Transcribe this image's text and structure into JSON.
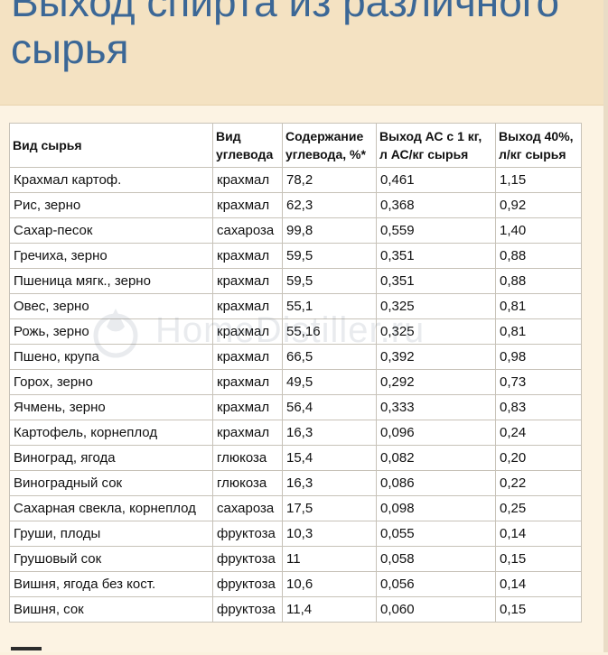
{
  "banner": {
    "title_line1": "Выход спирта из различного",
    "title_line2": "сырья"
  },
  "watermark": {
    "text": "HomeDistiller.ru"
  },
  "table": {
    "headers": [
      [
        "Вид сырья"
      ],
      [
        "Вид",
        "углевода"
      ],
      [
        "Содержание",
        "углевода, %*"
      ],
      [
        "Выход АС с 1 кг,",
        "л АС/кг сырья"
      ],
      [
        "Выход 40%,",
        "л/кг сырья"
      ]
    ],
    "rows": [
      [
        "Крахмал картоф.",
        "крахмал",
        "78,2",
        "0,461",
        "1,15"
      ],
      [
        "Рис, зерно",
        "крахмал",
        "62,3",
        "0,368",
        "0,92"
      ],
      [
        "Сахар-песок",
        "сахароза",
        "99,8",
        "0,559",
        "1,40"
      ],
      [
        "Гречиха, зерно",
        "крахмал",
        "59,5",
        "0,351",
        "0,88"
      ],
      [
        "Пшеница мягк., зерно",
        "крахмал",
        "59,5",
        "0,351",
        "0,88"
      ],
      [
        "Овес, зерно",
        "крахмал",
        "55,1",
        "0,325",
        "0,81"
      ],
      [
        "Рожь, зерно",
        "крахмал",
        "55,16",
        "0,325",
        "0,81"
      ],
      [
        "Пшено, крупа",
        "крахмал",
        "66,5",
        "0,392",
        "0,98"
      ],
      [
        "Горох, зерно",
        "крахмал",
        "49,5",
        "0,292",
        "0,73"
      ],
      [
        "Ячмень, зерно",
        "крахмал",
        "56,4",
        "0,333",
        "0,83"
      ],
      [
        "Картофель, корнеплод",
        "крахмал",
        "16,3",
        "0,096",
        "0,24"
      ],
      [
        "Виноград, ягода",
        "глюкоза",
        "15,4",
        "0,082",
        "0,20"
      ],
      [
        "Виноградный сок",
        "глюкоза",
        "16,3",
        "0,086",
        "0,22"
      ],
      [
        "Сахарная свекла, корнеплод",
        "сахароза",
        "17,5",
        "0,098",
        "0,25"
      ],
      [
        "Груши, плоды",
        "фруктоза",
        "10,3",
        "0,055",
        "0,14"
      ],
      [
        "Грушовый сок",
        "фруктоза",
        "11",
        "0,058",
        "0,15"
      ],
      [
        "Вишня, ягода без кост.",
        "фруктоза",
        "10,6",
        "0,056",
        "0,14"
      ],
      [
        "Вишня, сок",
        "фруктоза",
        "11,4",
        "0,060",
        "0,15"
      ]
    ]
  }
}
